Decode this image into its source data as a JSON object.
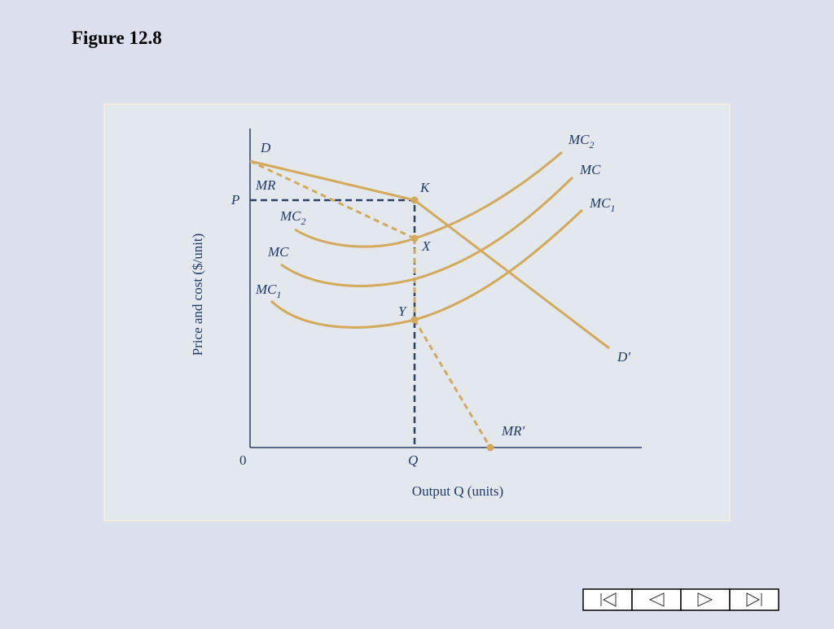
{
  "header": {
    "title": "Figure 12.8"
  },
  "diagram": {
    "y_axis_label": "Price and cost ($/unit)",
    "x_axis_label": "Output Q (units)",
    "origin": "0",
    "labels": {
      "D": "D",
      "MR": "MR",
      "P": "P",
      "K": "K",
      "X": "X",
      "Y": "Y",
      "Q": "Q",
      "D_prime": "D′",
      "MR_prime": "MR′",
      "MC2_left": {
        "main": "MC",
        "sub": "2"
      },
      "MC_left": "MC",
      "MC1_left": {
        "main": "MC",
        "sub": "1"
      },
      "MC2_right": {
        "main": "MC",
        "sub": "2"
      },
      "MC_right": "MC",
      "MC1_right": {
        "main": "MC",
        "sub": "1"
      }
    }
  }
}
